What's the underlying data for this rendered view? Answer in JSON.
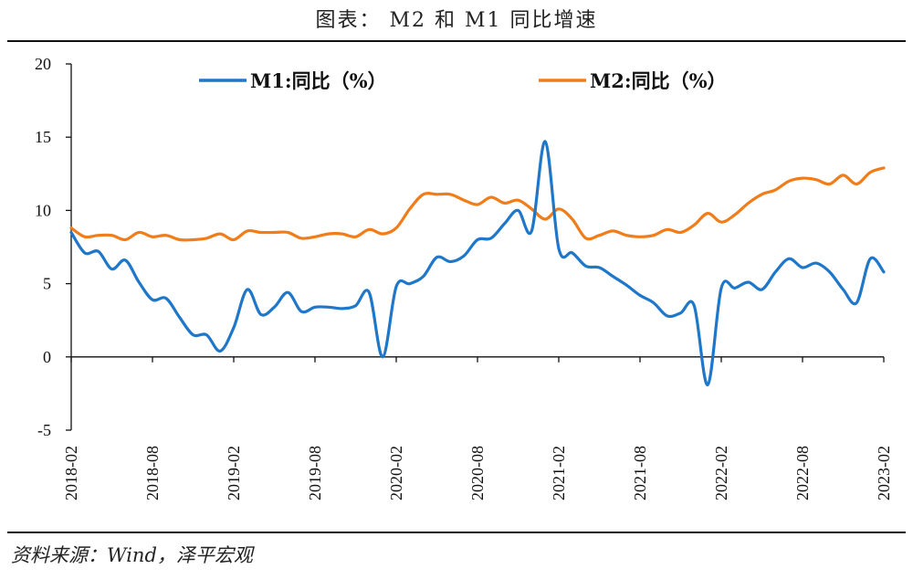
{
  "title": "图表： M2 和 M1 同比增速",
  "source": "资料来源：Wind，泽平宏观",
  "chart_data": {
    "type": "line",
    "title": "图表： M2 和 M1 同比增速",
    "xlabel": "",
    "ylabel": "",
    "ylim": [
      -5,
      20
    ],
    "yticks": [
      -5,
      0,
      5,
      10,
      15,
      20
    ],
    "xtick_labels": [
      "2018-02",
      "2018-08",
      "2019-02",
      "2019-08",
      "2020-02",
      "2020-08",
      "2021-02",
      "2021-08",
      "2022-02",
      "2022-08",
      "2023-02"
    ],
    "x": [
      "2018-02",
      "2018-03",
      "2018-04",
      "2018-05",
      "2018-06",
      "2018-07",
      "2018-08",
      "2018-09",
      "2018-10",
      "2018-11",
      "2018-12",
      "2019-01",
      "2019-02",
      "2019-03",
      "2019-04",
      "2019-05",
      "2019-06",
      "2019-07",
      "2019-08",
      "2019-09",
      "2019-10",
      "2019-11",
      "2019-12",
      "2020-01",
      "2020-02",
      "2020-03",
      "2020-04",
      "2020-05",
      "2020-06",
      "2020-07",
      "2020-08",
      "2020-09",
      "2020-10",
      "2020-11",
      "2020-12",
      "2021-01",
      "2021-02",
      "2021-03",
      "2021-04",
      "2021-05",
      "2021-06",
      "2021-07",
      "2021-08",
      "2021-09",
      "2021-10",
      "2021-11",
      "2021-12",
      "2022-01",
      "2022-02",
      "2022-03",
      "2022-04",
      "2022-05",
      "2022-06",
      "2022-07",
      "2022-08",
      "2022-09",
      "2022-10",
      "2022-11",
      "2022-12",
      "2023-01",
      "2023-02"
    ],
    "legend_position": "top",
    "grid": false,
    "series": [
      {
        "name": "M1:同比（%）",
        "color": "#1f77c9",
        "values": [
          8.5,
          7.1,
          7.2,
          6.0,
          6.6,
          5.1,
          3.9,
          4.0,
          2.7,
          1.5,
          1.5,
          0.4,
          2.0,
          4.6,
          2.9,
          3.4,
          4.4,
          3.1,
          3.4,
          3.4,
          3.3,
          3.5,
          4.4,
          0.0,
          4.8,
          5.0,
          5.5,
          6.8,
          6.5,
          6.9,
          8.0,
          8.1,
          9.1,
          10.0,
          8.6,
          14.7,
          7.4,
          7.1,
          6.2,
          6.1,
          5.5,
          4.9,
          4.2,
          3.7,
          2.8,
          3.0,
          3.5,
          -1.9,
          4.7,
          4.7,
          5.1,
          4.6,
          5.8,
          6.7,
          6.1,
          6.4,
          5.8,
          4.6,
          3.7,
          6.7,
          5.8
        ]
      },
      {
        "name": "M2:同比（%）",
        "color": "#f07d1a",
        "values": [
          8.8,
          8.2,
          8.3,
          8.3,
          8.0,
          8.5,
          8.2,
          8.3,
          8.0,
          8.0,
          8.1,
          8.4,
          8.0,
          8.6,
          8.5,
          8.5,
          8.5,
          8.1,
          8.2,
          8.4,
          8.4,
          8.2,
          8.7,
          8.4,
          8.8,
          10.1,
          11.1,
          11.1,
          11.1,
          10.7,
          10.4,
          10.9,
          10.5,
          10.7,
          10.1,
          9.4,
          10.1,
          9.4,
          8.1,
          8.3,
          8.6,
          8.3,
          8.2,
          8.3,
          8.7,
          8.5,
          9.0,
          9.8,
          9.2,
          9.7,
          10.5,
          11.1,
          11.4,
          12.0,
          12.2,
          12.1,
          11.8,
          12.4,
          11.8,
          12.6,
          12.9
        ]
      }
    ]
  }
}
